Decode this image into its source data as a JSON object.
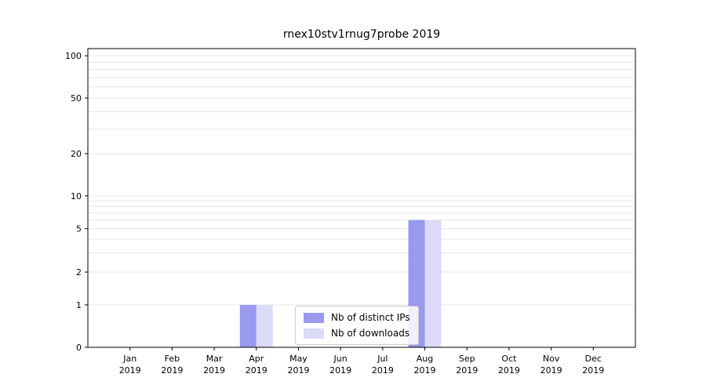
{
  "chart_data": {
    "type": "bar",
    "title": "rnex10stv1rnug7probe 2019",
    "categories": [
      "Jan 2019",
      "Feb 2019",
      "Mar 2019",
      "Apr 2019",
      "May 2019",
      "Jun 2019",
      "Jul 2019",
      "Aug 2019",
      "Sep 2019",
      "Oct 2019",
      "Nov 2019",
      "Dec 2019"
    ],
    "series": [
      {
        "name": "Nb of distinct IPs",
        "color": "#9999ee",
        "values": [
          0,
          0,
          0,
          1,
          0,
          0,
          0,
          6,
          0,
          0,
          0,
          0
        ]
      },
      {
        "name": "Nb of downloads",
        "color": "#dbdaf8",
        "values": [
          0,
          0,
          0,
          1,
          0,
          0,
          0,
          6,
          0,
          0,
          0,
          0
        ]
      }
    ],
    "yticks": [
      0,
      1,
      2,
      5,
      10,
      20,
      50,
      100
    ],
    "yscale": "symlog",
    "ylim": [
      0,
      115
    ],
    "grid": "horizontal-minor",
    "grid_color": "#e6e6e6",
    "legend_position": "lower center",
    "axis_color": "#000000"
  }
}
